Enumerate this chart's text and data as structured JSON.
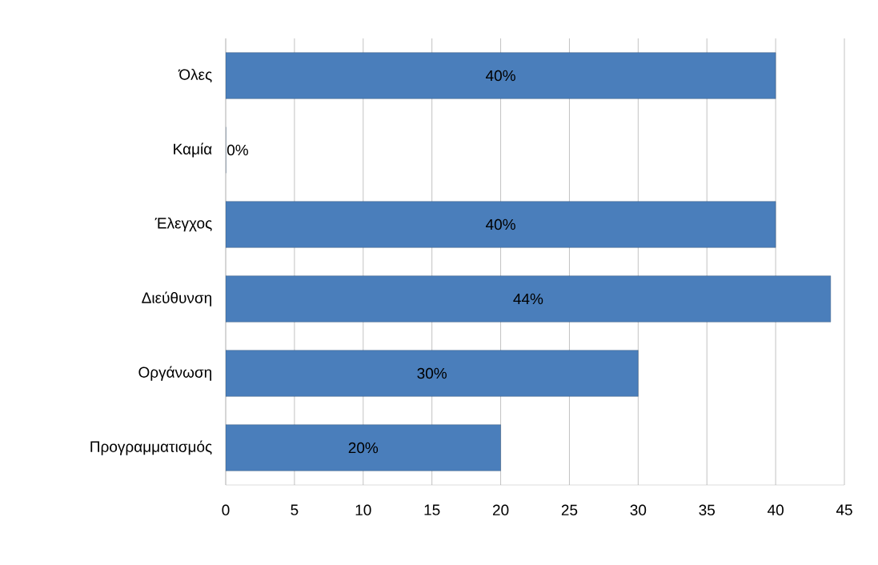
{
  "chart_data": {
    "type": "bar",
    "orientation": "horizontal",
    "categories": [
      "Όλες",
      "Καμία",
      "Έλεγχος",
      "Διεύθυνση",
      "Οργάνωση",
      "Προγραμματισμός"
    ],
    "values": [
      40,
      0,
      40,
      44,
      30,
      20
    ],
    "value_labels": [
      "40%",
      "0%",
      "40%",
      "44%",
      "30%",
      "20%"
    ],
    "color": "#4a7ebb",
    "xlim": [
      0,
      45
    ],
    "xticks": [
      0,
      5,
      10,
      15,
      20,
      25,
      30,
      35,
      40,
      45
    ],
    "grid": "x",
    "legend": false
  }
}
